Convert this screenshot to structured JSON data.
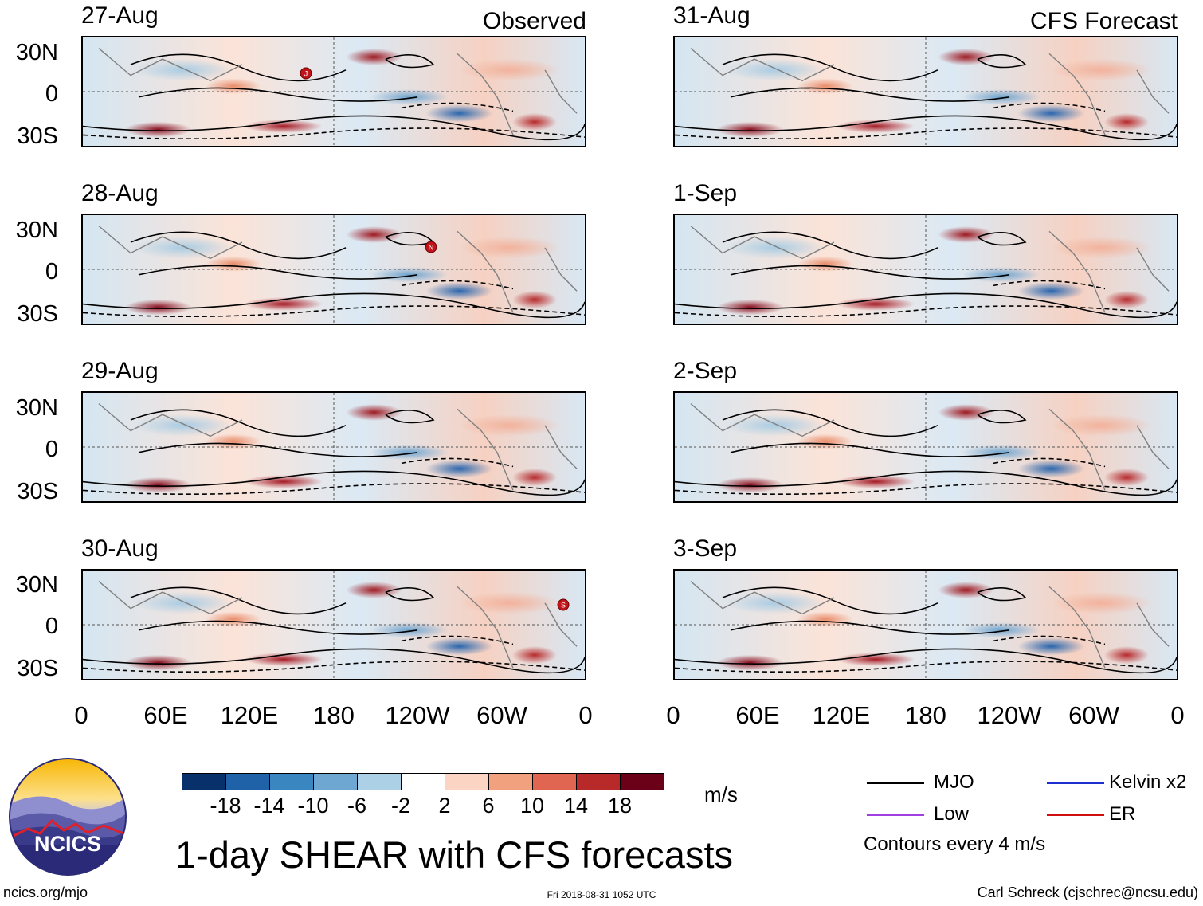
{
  "chart_data": {
    "type": "heatmap",
    "title": "1-day SHEAR with CFS forecasts",
    "units": "m/s",
    "observed_label": "Observed",
    "forecast_label": "CFS Forecast",
    "observed_dates": [
      "27-Aug",
      "28-Aug",
      "29-Aug",
      "30-Aug"
    ],
    "forecast_dates": [
      "31-Aug",
      "1-Sep",
      "2-Sep",
      "3-Sep"
    ],
    "y_tick_labels": [
      "30N",
      "0",
      "30S"
    ],
    "x_tick_labels": [
      "0",
      "60E",
      "120E",
      "180",
      "120W",
      "60W",
      "0"
    ],
    "colorbar": {
      "levels": [
        "-18",
        "-14",
        "-10",
        "-6",
        "-2",
        "2",
        "6",
        "10",
        "14",
        "18"
      ],
      "colors": [
        "#08306b",
        "#1f62a8",
        "#3a86c0",
        "#6ea8d2",
        "#acd0e6",
        "#d6e8f3",
        "#ffffff",
        "#fbd4c4",
        "#f2a17e",
        "#e06652",
        "#b82a2a",
        "#6b0019"
      ]
    },
    "legend": {
      "mjo": "MJO",
      "low": "Low",
      "kelvin": "Kelvin x2",
      "er": "ER",
      "contour_note": "Contours every 4 m/s",
      "colors": {
        "mjo": "#000000",
        "low": "#a040e0",
        "kelvin": "#1d2fcf",
        "er": "#d01010"
      }
    },
    "storm_markers": [
      {
        "panel": "27-Aug",
        "letter": "J"
      },
      {
        "panel": "28-Aug",
        "letter": "N"
      },
      {
        "panel": "30-Aug",
        "letter": "S"
      }
    ]
  },
  "footer": {
    "logo_text": "NCICS",
    "url": "ncics.org/mjo",
    "timestamp": "Fri 2018-08-31 1052 UTC",
    "author": "Carl Schreck (cjschrec@ncsu.edu)"
  }
}
